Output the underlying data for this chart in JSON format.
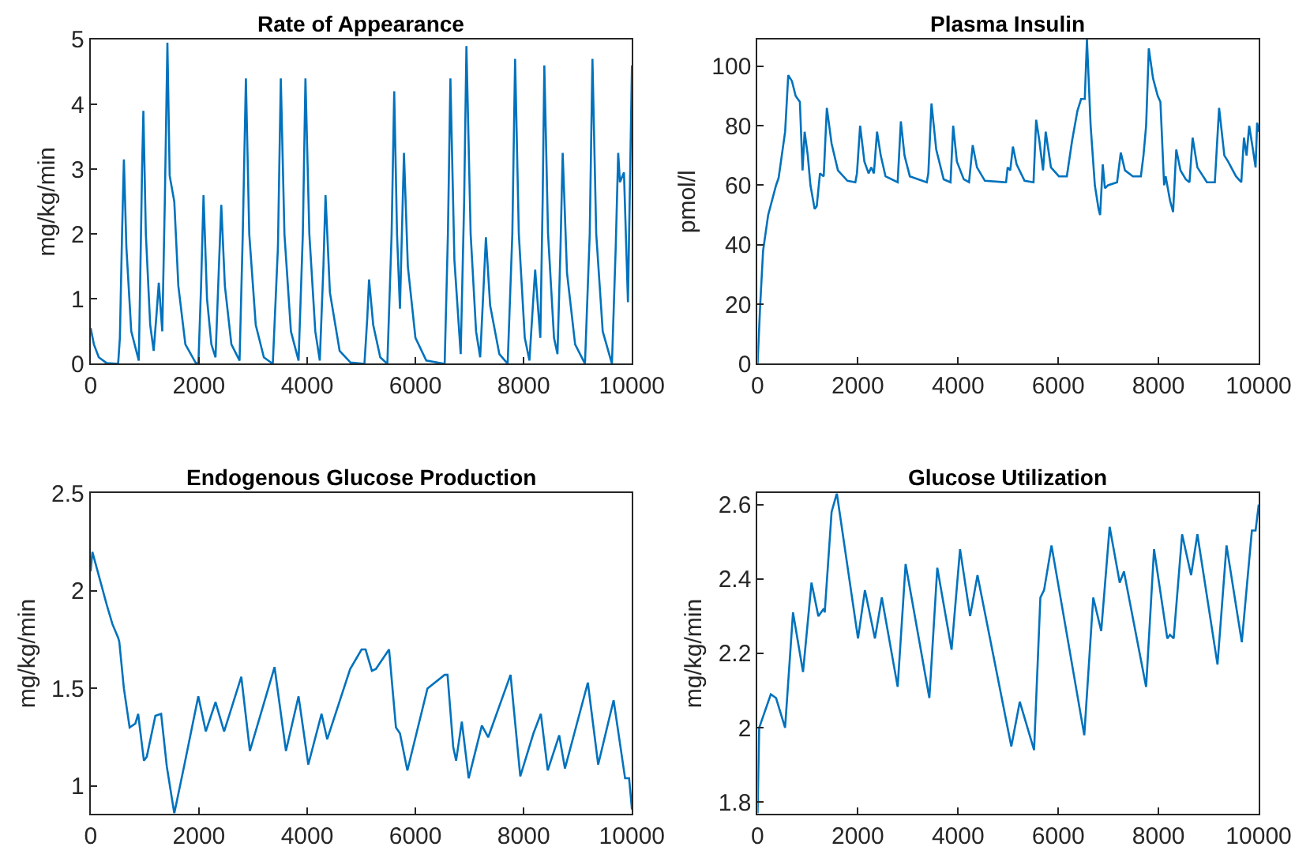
{
  "chart_data": [
    {
      "type": "line",
      "title": "Rate of Appearance",
      "ylabel": "mg/kg/min",
      "xlim": [
        0,
        10000
      ],
      "xticks": [
        0,
        2000,
        4000,
        6000,
        8000,
        10000
      ],
      "ylim": [
        0,
        5
      ],
      "yticks": [
        0,
        1,
        2,
        3,
        4,
        5
      ],
      "x": [
        0,
        60,
        150,
        296,
        508,
        540,
        580,
        614,
        660,
        750,
        889,
        920,
        950,
        974,
        1020,
        1100,
        1164,
        1220,
        1259,
        1323,
        1370,
        1418,
        1460,
        1545,
        1620,
        1750,
        1937,
        1990,
        2040,
        2085,
        2150,
        2230,
        2307,
        2370,
        2413,
        2480,
        2600,
        2751,
        2810,
        2868,
        2930,
        3050,
        3200,
        3365,
        3460,
        3513,
        3580,
        3700,
        3841,
        3920,
        3968,
        4040,
        4150,
        4233,
        4300,
        4339,
        4420,
        4600,
        4800,
        5058,
        5110,
        5143,
        5220,
        5350,
        5481,
        5560,
        5608,
        5660,
        5714,
        5788,
        5860,
        6000,
        6200,
        6540,
        6600,
        6646,
        6720,
        6836,
        6900,
        6942,
        7020,
        7120,
        7196,
        7260,
        7302,
        7380,
        7550,
        7704,
        7790,
        7841,
        7910,
        8020,
        8106,
        8170,
        8212,
        8307,
        8350,
        8381,
        8450,
        8560,
        8624,
        8680,
        8720,
        8800,
        8950,
        9132,
        9220,
        9270,
        9340,
        9460,
        9630,
        9700,
        9746,
        9778,
        9852,
        9926,
        10000
      ],
      "series": [
        {
          "color": "#0072bd",
          "values": [
            0.55,
            0.3,
            0.1,
            0.01,
            0,
            0.4,
            2.0,
            3.15,
            1.8,
            0.5,
            0.05,
            1.5,
            3.0,
            3.9,
            2.0,
            0.6,
            0.2,
            0.8,
            1.25,
            0.5,
            2.5,
            4.95,
            2.9,
            2.5,
            1.2,
            0.3,
            0.02,
            0,
            1.2,
            2.6,
            1.0,
            0.3,
            0.1,
            1.5,
            2.45,
            1.2,
            0.3,
            0.05,
            2.0,
            4.4,
            2.0,
            0.6,
            0.1,
            0,
            1.8,
            4.4,
            2.0,
            0.5,
            0.05,
            2.0,
            4.4,
            2.0,
            0.5,
            0.05,
            1.5,
            2.6,
            1.1,
            0.2,
            0.02,
            0,
            0.7,
            1.3,
            0.6,
            0.1,
            0,
            2.0,
            4.2,
            2.0,
            0.85,
            3.25,
            1.5,
            0.4,
            0.05,
            0,
            2.0,
            4.4,
            1.6,
            0.15,
            2.5,
            4.9,
            2.0,
            0.5,
            0.1,
            1.2,
            1.95,
            0.9,
            0.15,
            0,
            2.0,
            4.7,
            2.0,
            0.4,
            0.05,
            0.9,
            1.45,
            0.4,
            2.5,
            4.6,
            2.0,
            0.4,
            0.15,
            1.8,
            3.25,
            1.4,
            0.3,
            0,
            2.0,
            4.7,
            2.0,
            0.5,
            0,
            1.8,
            3.25,
            2.8,
            2.95,
            0.95,
            4.6
          ]
        }
      ]
    },
    {
      "type": "line",
      "title": "Plasma Insulin",
      "ylabel": "pmol/l",
      "xlim": [
        0,
        10000
      ],
      "xticks": [
        0,
        2000,
        4000,
        6000,
        8000,
        10000
      ],
      "ylim": [
        0,
        109
      ],
      "yticks": [
        0,
        20,
        40,
        60,
        80,
        100
      ],
      "x": [
        0,
        53,
        110,
        211,
        369,
        420,
        550,
        612,
        686,
        760,
        844,
        897,
        939,
        1002,
        1055,
        1139,
        1181,
        1245,
        1319,
        1382,
        1477,
        1603,
        1793,
        1951,
        1983,
        2046,
        2131,
        2215,
        2268,
        2321,
        2384,
        2458,
        2553,
        2795,
        2859,
        2932,
        3038,
        3376,
        3407,
        3470,
        3565,
        3713,
        3850,
        3903,
        3977,
        4114,
        4219,
        4293,
        4378,
        4536,
        4958,
        4990,
        5042,
        5095,
        5169,
        5327,
        5506,
        5559,
        5622,
        5696,
        5749,
        5854,
        6013,
        6171,
        6276,
        6382,
        6456,
        6529,
        6572,
        6646,
        6730,
        6804,
        6835,
        6888,
        6930,
        6994,
        7173,
        7247,
        7331,
        7489,
        7648,
        7700,
        7753,
        7806,
        7890,
        7985,
        8038,
        8112,
        8143,
        8228,
        8291,
        8354,
        8439,
        8544,
        8618,
        8681,
        8776,
        8966,
        9124,
        9209,
        9314,
        9388,
        9546,
        9652,
        9705,
        9757,
        9810,
        9884,
        9937,
        9968,
        10000
      ],
      "series": [
        {
          "color": "#0072bd",
          "values": [
            0,
            20,
            38,
            50,
            60,
            62.5,
            78,
            97,
            95,
            90,
            88,
            65,
            78,
            70,
            60,
            52,
            53,
            64,
            63,
            86,
            74,
            65,
            61.5,
            61,
            64,
            80,
            68,
            64,
            66,
            64,
            78,
            70,
            63,
            61,
            81.5,
            70,
            63,
            61,
            64,
            87.5,
            72,
            62,
            61,
            80,
            68,
            62,
            61,
            73.5,
            66,
            61.5,
            61,
            66,
            65,
            73,
            67,
            61.5,
            61,
            82,
            75,
            65,
            78,
            66,
            63,
            63,
            75,
            85,
            89,
            89,
            109,
            80,
            60,
            52,
            50,
            67,
            59,
            60,
            61,
            71,
            65,
            63,
            63,
            70,
            80,
            106,
            96,
            90,
            88,
            60,
            63,
            55,
            51,
            72,
            65,
            62,
            61,
            76,
            66,
            61,
            61,
            86,
            70,
            68,
            63,
            61,
            76,
            70,
            80,
            72,
            66,
            81,
            78
          ]
        }
      ]
    },
    {
      "type": "line",
      "title": "Endogenous Glucose Production",
      "ylabel": "mg/kg/min",
      "xlim": [
        0,
        10000
      ],
      "xticks": [
        0,
        2000,
        4000,
        6000,
        8000,
        10000
      ],
      "ylim": [
        0.86,
        2.5
      ],
      "yticks": [
        1,
        1.5,
        2,
        2.5
      ],
      "x": [
        0,
        32,
        296,
        402,
        508,
        529,
        614,
        720,
        825,
        878,
        984,
        1037,
        1196,
        1302,
        1407,
        1545,
        1725,
        1989,
        2127,
        2307,
        2466,
        2783,
        2942,
        3397,
        3608,
        3841,
        4021,
        4265,
        4370,
        4794,
        5005,
        5079,
        5196,
        5270,
        5513,
        5640,
        5714,
        5851,
        6222,
        6540,
        6593,
        6698,
        6751,
        6857,
        6984,
        7227,
        7344,
        7757,
        7937,
        8180,
        8317,
        8444,
        8656,
        8762,
        9185,
        9376,
        9661,
        9873,
        9947,
        10000
      ],
      "series": [
        {
          "color": "#0072bd",
          "values": [
            2.1,
            2.2,
            1.93,
            1.83,
            1.76,
            1.74,
            1.5,
            1.3,
            1.32,
            1.37,
            1.13,
            1.15,
            1.36,
            1.37,
            1.1,
            0.86,
            1.1,
            1.46,
            1.28,
            1.43,
            1.28,
            1.56,
            1.18,
            1.61,
            1.18,
            1.46,
            1.11,
            1.37,
            1.24,
            1.6,
            1.7,
            1.7,
            1.59,
            1.6,
            1.7,
            1.3,
            1.27,
            1.08,
            1.5,
            1.57,
            1.57,
            1.2,
            1.13,
            1.33,
            1.04,
            1.31,
            1.25,
            1.57,
            1.05,
            1.27,
            1.37,
            1.08,
            1.26,
            1.09,
            1.53,
            1.11,
            1.44,
            1.04,
            1.04,
            0.88
          ]
        }
      ]
    },
    {
      "type": "line",
      "title": "Glucose Utilization",
      "ylabel": "mg/kg/min",
      "xlim": [
        0,
        10000
      ],
      "xticks": [
        0,
        2000,
        4000,
        6000,
        8000,
        10000
      ],
      "ylim": [
        1.77,
        2.63
      ],
      "yticks": [
        1.8,
        2,
        2.2,
        2.4,
        2.6
      ],
      "x": [
        0,
        32,
        264,
        369,
        549,
        707,
        907,
        1076,
        1213,
        1319,
        1340,
        1477,
        1582,
        2004,
        2142,
        2342,
        2479,
        2795,
        2954,
        3428,
        3586,
        3871,
        4040,
        4241,
        4388,
        5063,
        5232,
        5517,
        5643,
        5717,
        5865,
        6519,
        6698,
        6857,
        7025,
        7226,
        7310,
        7753,
        7911,
        8175,
        8228,
        8302,
        8471,
        8650,
        8776,
        9177,
        9357,
        9662,
        9863,
        9937,
        10000
      ],
      "series": [
        {
          "color": "#0072bd",
          "values": [
            1.77,
            2.0,
            2.09,
            2.08,
            2.0,
            2.31,
            2.15,
            2.39,
            2.3,
            2.32,
            2.31,
            2.58,
            2.63,
            2.24,
            2.37,
            2.24,
            2.35,
            2.11,
            2.44,
            2.08,
            2.43,
            2.21,
            2.48,
            2.3,
            2.41,
            1.95,
            2.07,
            1.94,
            2.35,
            2.37,
            2.49,
            1.98,
            2.35,
            2.26,
            2.54,
            2.39,
            2.42,
            2.11,
            2.48,
            2.24,
            2.25,
            2.24,
            2.52,
            2.41,
            2.52,
            2.17,
            2.49,
            2.23,
            2.53,
            2.53,
            2.6
          ]
        }
      ]
    }
  ]
}
